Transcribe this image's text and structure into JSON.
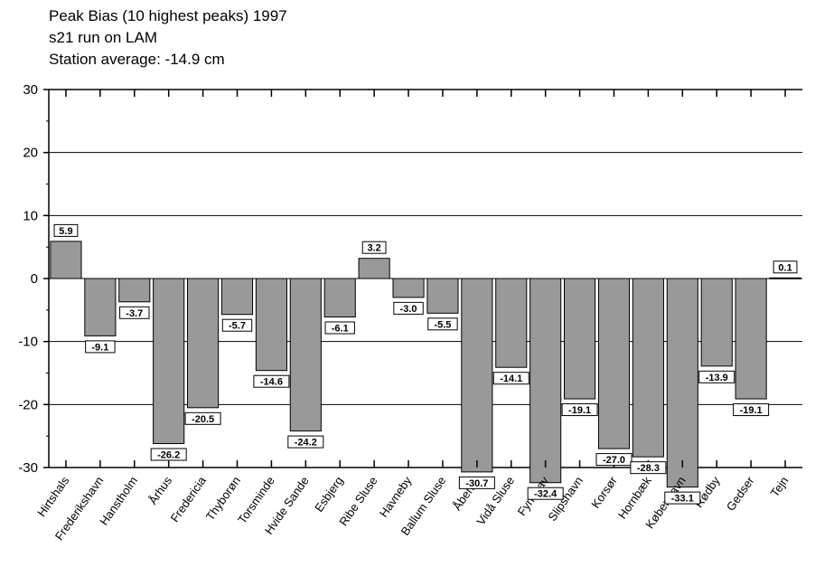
{
  "header": {
    "title": "Peak Bias (10 highest peaks) 1997",
    "subtitle": "s21 run on LAM",
    "average": "Station average: -14.9 cm"
  },
  "chart_data": {
    "type": "bar",
    "title": "Peak Bias (10 highest peaks) 1997",
    "subtitle": "s21 run on LAM",
    "annotation": "Station average: -14.9 cm",
    "xlabel": "",
    "ylabel": "",
    "ylim": [
      -30,
      30
    ],
    "yticks": [
      -30,
      -20,
      -10,
      0,
      10,
      20,
      30
    ],
    "grid": true,
    "legend": "none",
    "bar_color": "#999999",
    "categories": [
      "Hirtshals",
      "Frederikshavn",
      "Hanstholm",
      "Århus",
      "Fredericia",
      "Thyborøn",
      "Torsminde",
      "Hvide Sande",
      "Esbjerg",
      "Ribe Sluse",
      "Havneby",
      "Ballum Sluse",
      "Åbenrå",
      "Vidå Sluse",
      "Fynshav",
      "Slipshavn",
      "Korsør",
      "Hornbæk",
      "København",
      "Rødby",
      "Gedser",
      "Tejn"
    ],
    "values": [
      5.9,
      -9.1,
      -3.7,
      -26.2,
      -20.5,
      -5.7,
      -14.6,
      -24.2,
      -6.1,
      3.2,
      -3.0,
      -5.5,
      -30.7,
      -14.1,
      -32.4,
      -19.1,
      -27.0,
      -28.3,
      -33.1,
      -13.9,
      -19.1,
      0.1
    ],
    "data_labels": [
      "5.9",
      "-9.1",
      "-3.7",
      "-26.2",
      "-20.5",
      "-5.7",
      "-14.6",
      "-24.2",
      "-6.1",
      "3.2",
      "-3.0",
      "-5.5",
      "-30.7",
      "-14.1",
      "-32.4",
      "-19.1",
      "-27.0",
      "-28.3",
      "-33.1",
      "-13.9",
      "-19.1",
      "0.1"
    ]
  }
}
